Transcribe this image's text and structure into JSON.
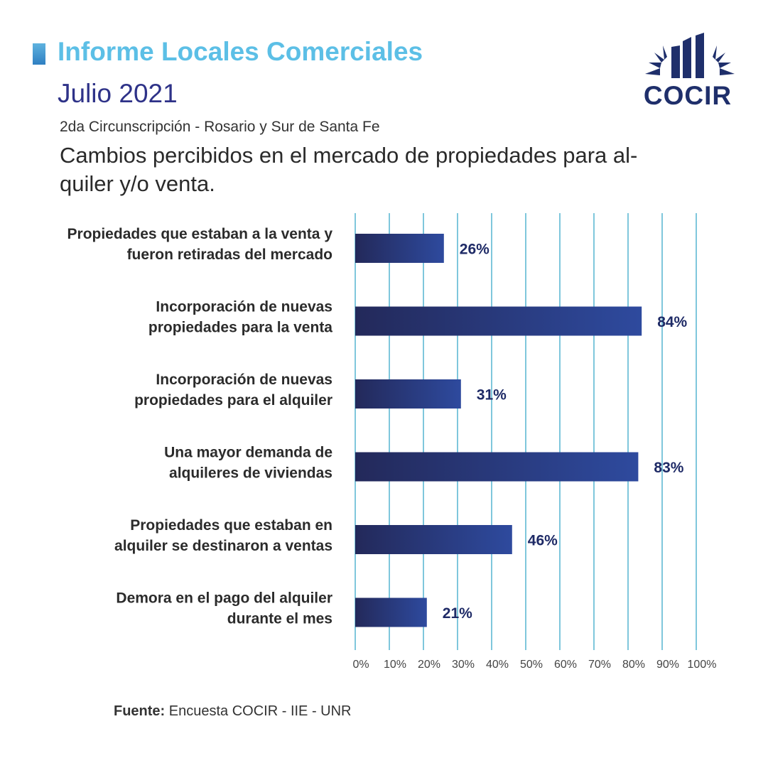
{
  "header": {
    "title": "Informe Locales Comerciales",
    "date": "Julio 2021",
    "region": "2da Circunscripción - Rosario y Sur de Santa Fe",
    "chart_title_line1": "Cambios percibidos en el mercado de propiedades para al-",
    "chart_title_line2": "quiler y/o venta."
  },
  "logo": {
    "text": "COCIR",
    "icon": "cocir-building-logo"
  },
  "colors": {
    "title": "#5cbfe6",
    "date": "#2e3288",
    "bar_start": "#23295a",
    "bar_end": "#2e4a9e",
    "gridline": "#7fc7dc",
    "value_label": "#1e2a66"
  },
  "chart_data": {
    "type": "bar",
    "orientation": "horizontal",
    "categories": [
      [
        "Propiedades que estaban a la venta y",
        "fueron retiradas del mercado"
      ],
      [
        "Incorporación de nuevas",
        "propiedades para la venta"
      ],
      [
        "Incorporación de nuevas",
        "propiedades para el alquiler"
      ],
      [
        "Una mayor demanda de",
        "alquileres de viviendas"
      ],
      [
        "Propiedades que estaban en",
        "alquiler se destinaron a ventas"
      ],
      [
        "Demora en el pago del alquiler",
        "durante el mes"
      ]
    ],
    "values": [
      26,
      84,
      31,
      83,
      46,
      21
    ],
    "value_labels": [
      "26%",
      "84%",
      "31%",
      "83%",
      "46%",
      "21%"
    ],
    "xlim": [
      0,
      100
    ],
    "xticks": [
      "0%",
      "10%",
      "20%",
      "30%",
      "40%",
      "50%",
      "60%",
      "70%",
      "80%",
      "90%",
      "100%"
    ],
    "grid": true
  },
  "footer": {
    "source_label": "Fuente:",
    "source_text": " Encuesta COCIR - IIE - UNR"
  }
}
